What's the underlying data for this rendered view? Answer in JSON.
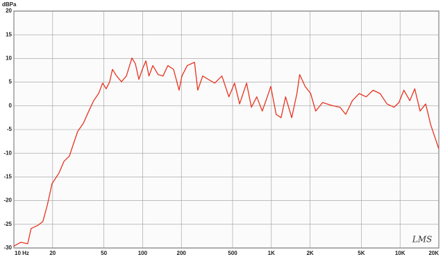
{
  "chart_data": {
    "type": "line",
    "y_label": "dBPa",
    "annotation": "LMS",
    "x": [
      10,
      11.3,
      12.8,
      13.6,
      15.4,
      16.8,
      18.2,
      19.8,
      22.4,
      24.5,
      27,
      28.7,
      31.3,
      34.6,
      38.2,
      41.7,
      45.5,
      48.9,
      52.1,
      55.5,
      58.3,
      62.8,
      68.5,
      74.8,
      82.6,
      87.8,
      93.5,
      99.5,
      106,
      112,
      120,
      132,
      144,
      157,
      174,
      192,
      202,
      222,
      253,
      268,
      293,
      323,
      363,
      413,
      468,
      518,
      567,
      642,
      700,
      770,
      850,
      930,
      990,
      1090,
      1190,
      1290,
      1440,
      1580,
      1660,
      1830,
      2020,
      2210,
      2500,
      2930,
      3420,
      3780,
      4260,
      4810,
      5450,
      6170,
      6990,
      7920,
      8970,
      9800,
      10700,
      11900,
      13000,
      14300,
      15800,
      17300,
      20000
    ],
    "values": [
      -29.6,
      -28.8,
      -29.1,
      -25.9,
      -25.2,
      -24.4,
      -20.9,
      -16.4,
      -14.2,
      -11.7,
      -10.6,
      -8.4,
      -5.4,
      -3.7,
      -1.1,
      1.1,
      2.6,
      4.8,
      3.6,
      5.1,
      7.7,
      6.3,
      5.1,
      6.3,
      10.1,
      8.9,
      5.6,
      7.7,
      9.5,
      6.3,
      8.5,
      6.6,
      6.3,
      8.5,
      7.7,
      3.3,
      6.3,
      8.5,
      9.2,
      3.3,
      6.3,
      5.6,
      4.8,
      6.3,
      1.9,
      4.8,
      0.4,
      4.8,
      -0.3,
      1.9,
      -1.1,
      1.9,
      4.1,
      -1.8,
      -2.5,
      1.9,
      -2.5,
      2.6,
      6.6,
      4.1,
      2.6,
      -1.1,
      0.7,
      0.1,
      -0.3,
      -1.8,
      1.1,
      2.6,
      1.9,
      3.3,
      2.6,
      0.4,
      -0.3,
      0.7,
      3.3,
      1.1,
      3.6,
      -1.1,
      0.4,
      -4.0,
      -9.1
    ],
    "color": "#e8321e",
    "xlim": [
      10,
      20000
    ],
    "log_x": true,
    "xticks": [
      {
        "value": 10,
        "label": "10 Hz"
      },
      20,
      50,
      100,
      200,
      500,
      {
        "value": 1000,
        "label": "1K"
      },
      {
        "value": 2000,
        "label": "2K"
      },
      {
        "value": 5000,
        "label": "5K"
      },
      {
        "value": 10000,
        "label": "10K"
      },
      {
        "value": 20000,
        "label": "20K"
      }
    ],
    "ylim": [
      -30,
      20
    ],
    "yticks": [
      -30,
      -25,
      -20,
      -15,
      -10,
      -5,
      0,
      5,
      10,
      15,
      20
    ],
    "grid": true
  }
}
